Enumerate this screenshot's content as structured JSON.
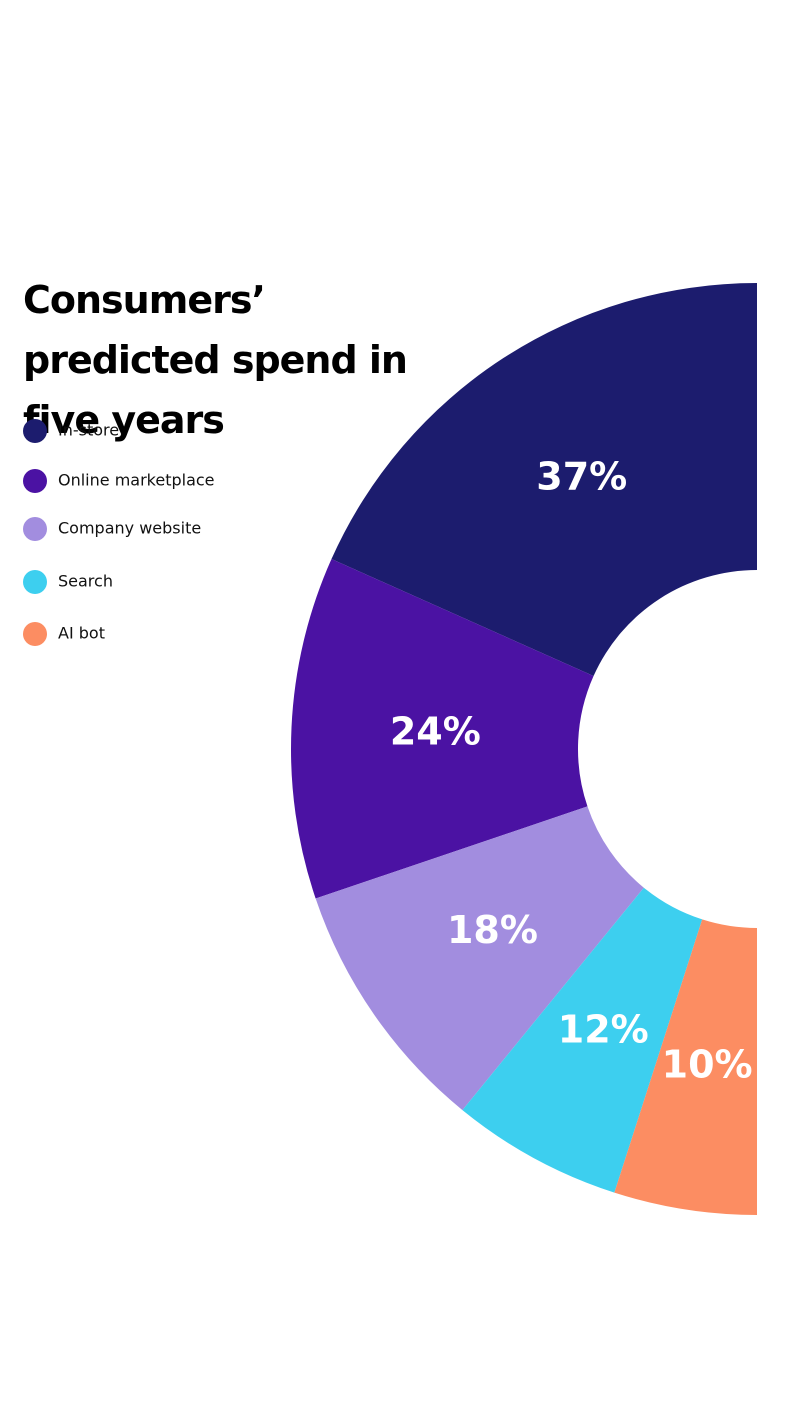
{
  "chart_data": {
    "type": "pie",
    "title": "Consumers’ predicted spend in five years",
    "categories": [
      "In-store",
      "Online marketplace",
      "Company website",
      "Search",
      "AI bot"
    ],
    "values": [
      37,
      24,
      18,
      12,
      10
    ],
    "value_labels": [
      "37%",
      "24%",
      "18%",
      "12%",
      "10%"
    ],
    "colors": [
      "#1c1c6e",
      "#4b12a3",
      "#a28ddf",
      "#3dcfef",
      "#fc8d62"
    ]
  }
}
